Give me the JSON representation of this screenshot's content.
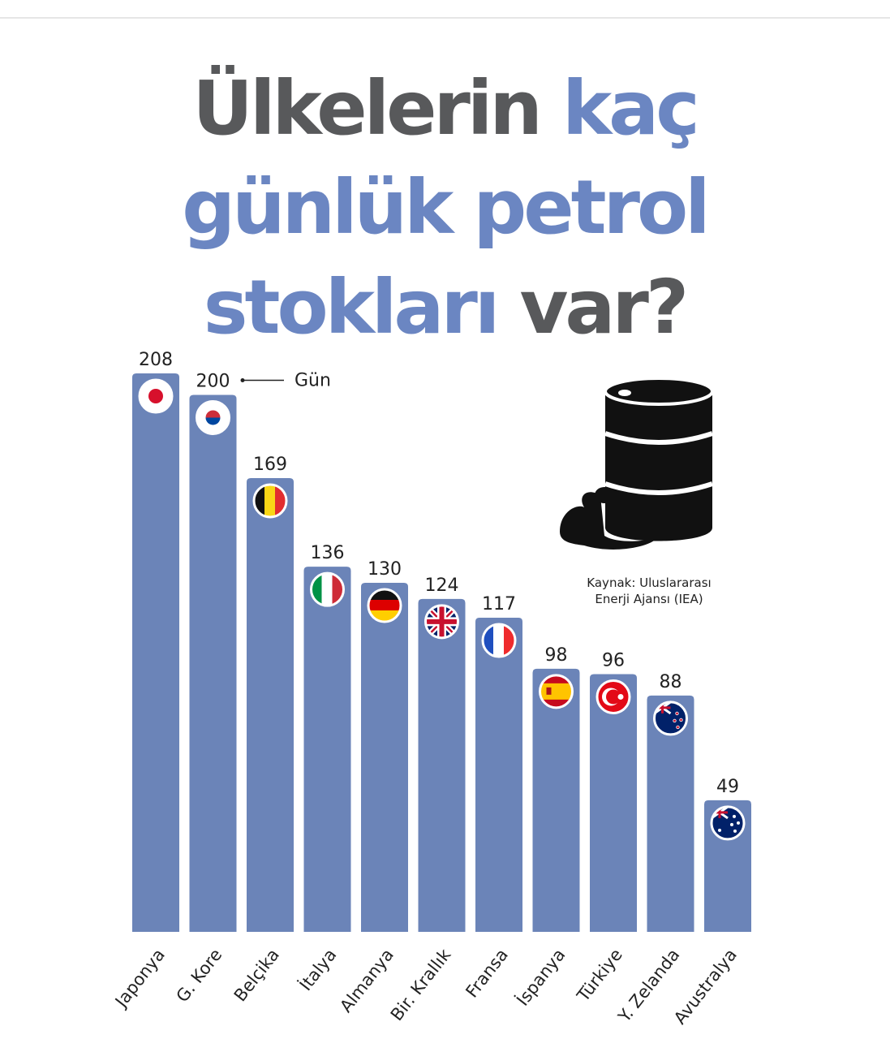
{
  "chart_data": {
    "type": "bar",
    "title_lines": [
      [
        {
          "text": "Ülkelerin",
          "color": "#58595b"
        },
        {
          "text": "kaç",
          "color": "#6b86c2"
        }
      ],
      [
        {
          "text": "günlük petrol",
          "color": "#6b86c2"
        }
      ],
      [
        {
          "text": "stokları",
          "color": "#6b86c2"
        },
        {
          "text": "var?",
          "color": "#58595b"
        }
      ]
    ],
    "categories": [
      "Japonya",
      "G. Kore",
      "Belçika",
      "İtalya",
      "Almanya",
      "Bir. Krallık",
      "Fransa",
      "İspanya",
      "Türkiye",
      "Y. Zelanda",
      "Avustralya"
    ],
    "values": [
      208,
      200,
      169,
      136,
      130,
      124,
      117,
      98,
      96,
      88,
      49
    ],
    "color": "#6b84b8",
    "unit_annotation": "Gün",
    "source_lines": [
      "Kaynak: Uluslararası",
      "Enerji Ajansı (IEA)"
    ]
  }
}
